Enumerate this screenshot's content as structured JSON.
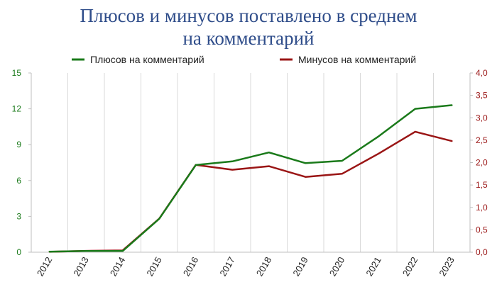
{
  "chart_data": {
    "type": "line",
    "title_line1": "Плюсов и минусов поставлено в среднем",
    "title_line2": "на комментарий",
    "x": [
      "2012",
      "2013",
      "2014",
      "2015",
      "2016",
      "2017",
      "2018",
      "2019",
      "2020",
      "2021",
      "2022",
      "2023"
    ],
    "series": [
      {
        "name": "Плюсов на комментарий",
        "axis": "left",
        "color": "#1a7a1a",
        "values": [
          0.05,
          0.1,
          0.1,
          2.8,
          7.3,
          7.6,
          8.35,
          7.45,
          7.65,
          9.7,
          12.0,
          12.3
        ]
      },
      {
        "name": "Минусов на комментарий",
        "axis": "right",
        "color": "#9a1515",
        "values": [
          0.01,
          0.03,
          0.04,
          0.75,
          1.95,
          1.84,
          1.92,
          1.68,
          1.75,
          2.2,
          2.69,
          2.48
        ]
      }
    ],
    "y_left": {
      "min": 0,
      "max": 15,
      "ticks": [
        "0",
        "3",
        "6",
        "9",
        "12",
        "15"
      ],
      "color": "#1a7a1a"
    },
    "y_right": {
      "min": 0,
      "max": 4,
      "ticks": [
        "0,0",
        "0,5",
        "1,0",
        "1,5",
        "2,0",
        "2,5",
        "3,0",
        "3,5",
        "4,0"
      ],
      "color": "#9a1515"
    },
    "grid": "vertical",
    "legend_position": "top"
  }
}
